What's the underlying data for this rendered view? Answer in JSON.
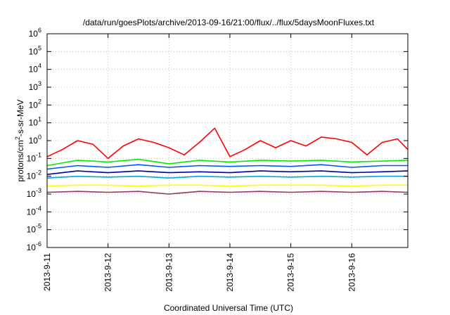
{
  "chart_data": {
    "type": "line",
    "title": "/data/run/goesPlots/archive/2013-09-16/21:00/flux/../flux/5daysMoonFluxes.txt",
    "xlabel": "Coordinated Universal Time (UTC)",
    "ylabel": "protons/cm²-s-sr-MeV",
    "xlim": [
      0,
      5.92
    ],
    "x_ticks": [
      {
        "value": 0,
        "label": "2013-9-11"
      },
      {
        "value": 1,
        "label": "2013-9-12"
      },
      {
        "value": 2,
        "label": "2013-9-13"
      },
      {
        "value": 3,
        "label": "2013-9-14"
      },
      {
        "value": 4,
        "label": "2013-9-15"
      },
      {
        "value": 5,
        "label": "2013-9-16"
      }
    ],
    "y_scale": "log",
    "ylim": [
      1e-06,
      1000000.0
    ],
    "y_ticks": [
      {
        "exp": 6,
        "base": "10",
        "sup": "6"
      },
      {
        "exp": 5,
        "base": "10",
        "sup": "5"
      },
      {
        "exp": 4,
        "base": "10",
        "sup": "4"
      },
      {
        "exp": 3,
        "base": "10",
        "sup": "3"
      },
      {
        "exp": 2,
        "base": "10",
        "sup": "2"
      },
      {
        "exp": 1,
        "base": "10",
        "sup": "1"
      },
      {
        "exp": 0,
        "base": "10",
        "sup": "0"
      },
      {
        "exp": -1,
        "base": "10",
        "sup": "-1"
      },
      {
        "exp": -2,
        "base": "10",
        "sup": "-2"
      },
      {
        "exp": -3,
        "base": "10",
        "sup": "-3"
      },
      {
        "exp": -4,
        "base": "10",
        "sup": "-4"
      },
      {
        "exp": -5,
        "base": "10",
        "sup": "-5"
      },
      {
        "exp": -6,
        "base": "10",
        "sup": "-6"
      }
    ],
    "grid": true,
    "series": [
      {
        "color": "#ff0000",
        "x": [
          0,
          0.25,
          0.5,
          0.75,
          1,
          1.25,
          1.5,
          1.75,
          2,
          2.25,
          2.5,
          2.75,
          3,
          3.25,
          3.5,
          3.75,
          4,
          4.25,
          4.5,
          4.75,
          5,
          5.25,
          5.5,
          5.75,
          5.92
        ],
        "log10": [
          -0.9,
          -0.5,
          0,
          -0.2,
          -1,
          -0.3,
          0.1,
          -0.1,
          -0.4,
          -0.8,
          -0.1,
          0.7,
          -0.9,
          -0.5,
          0,
          -0.4,
          0,
          -0.3,
          0.2,
          0.1,
          -0.1,
          -0.8,
          -0.1,
          0.1,
          -0.5
        ]
      },
      {
        "color": "#00ee00",
        "x": [
          0,
          0.5,
          1,
          1.5,
          2,
          2.5,
          3,
          3.5,
          4,
          4.5,
          5,
          5.5,
          5.92
        ],
        "log10": [
          -1.4,
          -1.1,
          -1.2,
          -1.05,
          -1.3,
          -1.1,
          -1.2,
          -1.1,
          -1.15,
          -1.1,
          -1.2,
          -1.15,
          -1.1
        ]
      },
      {
        "color": "#0055ff",
        "x": [
          0,
          0.5,
          1,
          1.5,
          2,
          2.5,
          3,
          3.5,
          4,
          4.5,
          5,
          5.5,
          5.92
        ],
        "log10": [
          -1.6,
          -1.4,
          -1.5,
          -1.35,
          -1.5,
          -1.4,
          -1.45,
          -1.4,
          -1.45,
          -1.35,
          -1.5,
          -1.4,
          -1.4
        ]
      },
      {
        "color": "#0000aa",
        "x": [
          0,
          0.5,
          1,
          1.5,
          2,
          2.5,
          3,
          3.5,
          4,
          4.5,
          5,
          5.5,
          5.92
        ],
        "log10": [
          -1.9,
          -1.7,
          -1.8,
          -1.7,
          -1.8,
          -1.75,
          -1.8,
          -1.7,
          -1.75,
          -1.7,
          -1.8,
          -1.75,
          -1.7
        ]
      },
      {
        "color": "#00aadd",
        "x": [
          0,
          0.5,
          1,
          1.5,
          2,
          2.5,
          3,
          3.5,
          4,
          4.5,
          5,
          5.5,
          5.92
        ],
        "log10": [
          -2.1,
          -2.0,
          -2.05,
          -2.0,
          -2.1,
          -2.0,
          -2.05,
          -2.0,
          -2.05,
          -2.0,
          -2.05,
          -2.0,
          -2.0
        ]
      },
      {
        "color": "#ffff00",
        "x": [
          0,
          0.5,
          1,
          1.5,
          2,
          2.5,
          3,
          3.5,
          4,
          4.5,
          5,
          5.5,
          5.92
        ],
        "log10": [
          -2.55,
          -2.5,
          -2.5,
          -2.55,
          -2.5,
          -2.5,
          -2.55,
          -2.5,
          -2.5,
          -2.5,
          -2.55,
          -2.5,
          -2.5
        ]
      },
      {
        "color": "#993366",
        "x": [
          0,
          0.5,
          1,
          1.5,
          2,
          2.5,
          3,
          3.5,
          4,
          4.5,
          5,
          5.5,
          5.92
        ],
        "log10": [
          -2.9,
          -2.85,
          -2.9,
          -2.85,
          -3.0,
          -2.85,
          -2.9,
          -2.85,
          -2.9,
          -2.85,
          -2.9,
          -2.85,
          -2.9
        ]
      }
    ]
  }
}
